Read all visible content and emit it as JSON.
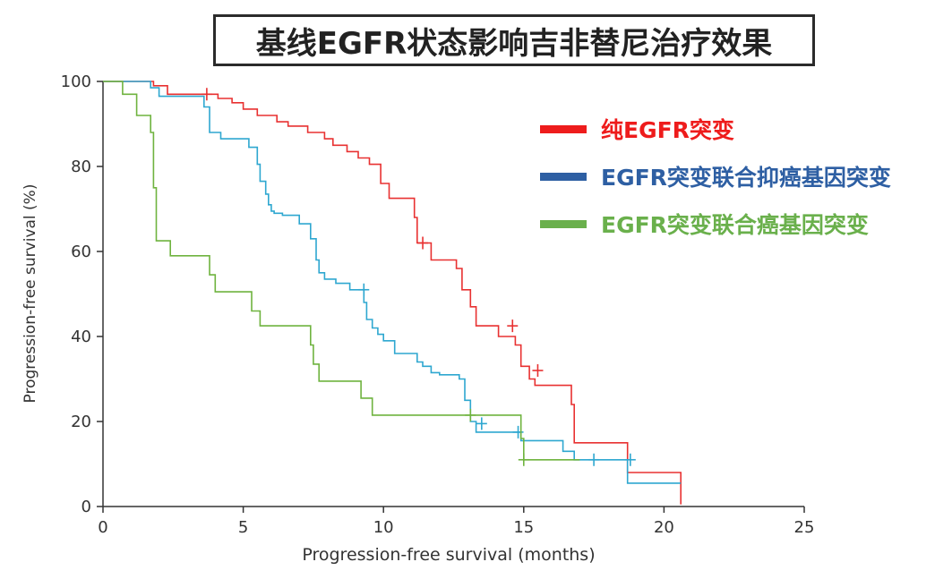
{
  "title": "基线EGFR状态影响吉非替尼治疗效果",
  "chart_data": {
    "type": "line",
    "subtype": "kaplan-meier",
    "xlabel": "Progression-free survival (months)",
    "ylabel": "Progression-free survival (%)",
    "xlim": [
      0,
      25
    ],
    "ylim": [
      0,
      100
    ],
    "xticks": [
      0,
      5,
      10,
      15,
      20,
      25
    ],
    "yticks": [
      0,
      20,
      40,
      60,
      80,
      100
    ],
    "grid": false,
    "legend_position": "top-right",
    "series": [
      {
        "name": "纯EGFR突变",
        "color": "#e83131",
        "legend_color": "#ee1c1c",
        "x": [
          0,
          1.8,
          1.8,
          2.3,
          2.3,
          4.1,
          4.1,
          4.6,
          4.6,
          5.0,
          5.0,
          5.5,
          5.5,
          6.2,
          6.2,
          6.6,
          6.6,
          7.3,
          7.3,
          7.9,
          7.9,
          8.2,
          8.2,
          8.7,
          8.7,
          9.1,
          9.1,
          9.5,
          9.5,
          9.9,
          9.9,
          10.2,
          10.2,
          11.1,
          11.1,
          11.2,
          11.2,
          11.7,
          11.7,
          12.6,
          12.6,
          12.8,
          12.8,
          13.1,
          13.1,
          13.3,
          13.3,
          14.1,
          14.1,
          14.7,
          14.7,
          14.9,
          14.9,
          15.2,
          15.2,
          15.4,
          15.4,
          16.7,
          16.7,
          16.8,
          16.8,
          18.7,
          18.7,
          20.6,
          20.6
        ],
        "y": [
          100,
          100,
          99,
          99,
          97,
          97,
          96,
          96,
          95,
          95,
          93.5,
          93.5,
          92,
          92,
          90.5,
          90.5,
          89.5,
          89.5,
          88,
          88,
          86.5,
          86.5,
          85,
          85,
          83.5,
          83.5,
          82,
          82,
          80.5,
          80.5,
          76,
          76,
          72.5,
          72.5,
          68,
          68,
          62,
          62,
          58,
          58,
          56,
          56,
          51,
          51,
          47,
          47,
          42.5,
          42.5,
          40,
          40,
          38,
          38,
          33,
          33,
          30,
          30,
          28.5,
          28.5,
          24,
          24,
          15,
          15,
          8,
          8,
          0.5
        ],
        "censored": [
          [
            3.7,
            97
          ],
          [
            11.4,
            62
          ],
          [
            14.6,
            42.5
          ],
          [
            15.5,
            32
          ]
        ]
      },
      {
        "name": "EGFR突变联合抑癌基因突变",
        "color": "#2ea7d0",
        "legend_color": "#2e5fa3",
        "x": [
          0,
          1.7,
          1.7,
          2.0,
          2.0,
          3.6,
          3.6,
          3.8,
          3.8,
          4.2,
          4.2,
          5.2,
          5.2,
          5.5,
          5.5,
          5.6,
          5.6,
          5.8,
          5.8,
          5.9,
          5.9,
          6.0,
          6.0,
          6.1,
          6.1,
          6.4,
          6.4,
          7.0,
          7.0,
          7.4,
          7.4,
          7.6,
          7.6,
          7.7,
          7.7,
          7.9,
          7.9,
          8.3,
          8.3,
          8.8,
          8.8,
          9.3,
          9.3,
          9.4,
          9.4,
          9.6,
          9.6,
          9.8,
          9.8,
          10.0,
          10.0,
          10.4,
          10.4,
          11.2,
          11.2,
          11.4,
          11.4,
          11.7,
          11.7,
          12.0,
          12.0,
          12.7,
          12.7,
          12.9,
          12.9,
          13.1,
          13.1,
          13.3,
          13.3,
          14.9,
          14.9,
          16.4,
          16.4,
          16.8,
          16.8,
          16.9,
          16.9,
          18.7,
          18.7,
          20.6
        ],
        "y": [
          100,
          100,
          98.5,
          98.5,
          96.5,
          96.5,
          94,
          94,
          88,
          88,
          86.5,
          86.5,
          84.5,
          84.5,
          80.5,
          80.5,
          76.5,
          76.5,
          73.5,
          73.5,
          71,
          71,
          69.5,
          69.5,
          69,
          69,
          68.5,
          68.5,
          66.5,
          66.5,
          63,
          63,
          58,
          58,
          55,
          55,
          53.5,
          53.5,
          52.5,
          52.5,
          51,
          51,
          48,
          48,
          44,
          44,
          42,
          42,
          40.5,
          40.5,
          39,
          39,
          36,
          36,
          34,
          34,
          33,
          33,
          31.5,
          31.5,
          31,
          31,
          30,
          30,
          25,
          25,
          20,
          20,
          17.5,
          17.5,
          15.5,
          15.5,
          13,
          13,
          11,
          11,
          11,
          11,
          5.5,
          5.5
        ],
        "censored": [
          [
            9.3,
            51
          ],
          [
            13.5,
            19.5
          ],
          [
            14.8,
            17.5
          ],
          [
            17.5,
            11
          ],
          [
            18.8,
            11
          ]
        ]
      },
      {
        "name": "EGFR突变联合癌基因突变",
        "color": "#6fb33f",
        "legend_color": "#6ab04c",
        "x": [
          0,
          0.7,
          0.7,
          1.2,
          1.2,
          1.7,
          1.7,
          1.8,
          1.8,
          1.9,
          1.9,
          2.4,
          2.4,
          3.8,
          3.8,
          4.0,
          4.0,
          5.3,
          5.3,
          5.6,
          5.6,
          7.4,
          7.4,
          7.5,
          7.5,
          7.7,
          7.7,
          9.2,
          9.2,
          9.6,
          9.6,
          14.9,
          14.9,
          15.0,
          15.0,
          17.0
        ],
        "y": [
          100,
          100,
          97,
          97,
          92,
          92,
          88,
          88,
          75,
          75,
          62.5,
          62.5,
          59,
          59,
          54.5,
          54.5,
          50.5,
          50.5,
          46,
          46,
          42.5,
          42.5,
          38,
          38,
          33.5,
          33.5,
          29.5,
          29.5,
          25.5,
          25.5,
          21.5,
          21.5,
          16,
          16,
          11,
          11
        ],
        "censored": [
          [
            13.1,
            21.5
          ],
          [
            15.0,
            11
          ]
        ]
      }
    ]
  }
}
